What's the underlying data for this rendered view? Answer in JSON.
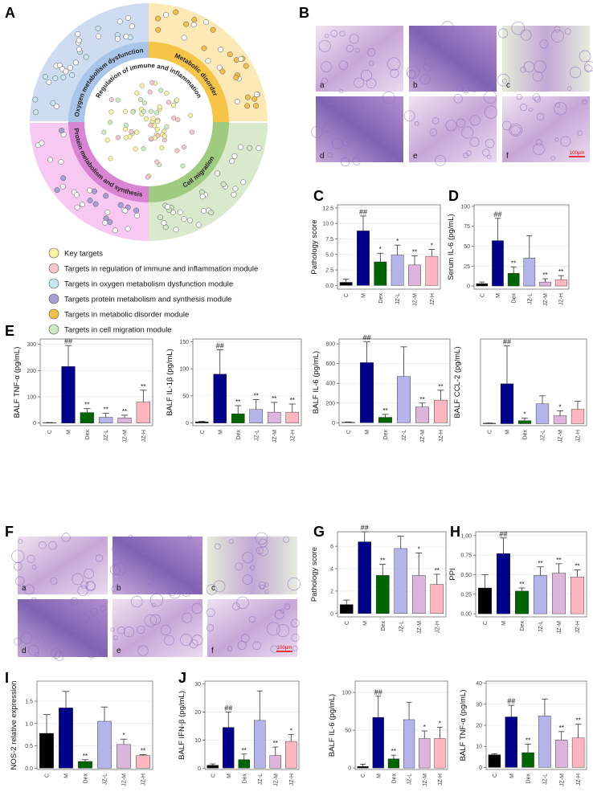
{
  "panel_labels": [
    "A",
    "B",
    "C",
    "D",
    "E",
    "F",
    "G",
    "H",
    "I",
    "J"
  ],
  "network": {
    "modules": [
      "Oxygen metabolism dysfunction",
      "Metabolic disorder",
      "Protein metabolism and synthesis",
      "Cell migration",
      "Regulation of immune and inflammation"
    ],
    "legend": [
      {
        "label": "Key targets",
        "color": "#f6f4a0"
      },
      {
        "label": "Targets in regulation of immune and inflammation module",
        "color": "#f6c6cc"
      },
      {
        "label": "Targets in oxygen metabolism dysfunction module",
        "color": "#c6e6f2"
      },
      {
        "label": "Targets protein metabolism and synthesis module",
        "color": "#a99fd6"
      },
      {
        "label": "Targets in metabolic disorder module",
        "color": "#f3c04a"
      },
      {
        "label": "Targets in cell migration module",
        "color": "#cdeac0"
      }
    ]
  },
  "histology_B": {
    "labels": [
      "a",
      "b",
      "c",
      "d",
      "e",
      "f"
    ],
    "scale_bar": "100μm"
  },
  "histology_F": {
    "labels": [
      "a",
      "b",
      "c",
      "d",
      "e",
      "f"
    ],
    "scale_bar": "100μm"
  },
  "chart_data": [
    {
      "type": "bar",
      "ylabel": "Pathology score",
      "categories": [
        "C",
        "M",
        "Dex",
        "JZ-L",
        "JZ-M",
        "JZ-H"
      ],
      "values": [
        0.5,
        8.8,
        3.8,
        4.9,
        3.3,
        4.7
      ],
      "errors": [
        0.5,
        2.4,
        1.4,
        1.6,
        1.5,
        1.1
      ],
      "annotations": [
        null,
        "##",
        "*",
        "*",
        "**",
        "*"
      ],
      "colors": [
        "#000000",
        "#00008b",
        "#006400",
        "#b4b4ea",
        "#dcb4dc",
        "#ffb6c1"
      ],
      "ylim": [
        -0.6,
        13
      ],
      "yticks": [
        {
          "value": 0,
          "label": "0.0"
        },
        2.5,
        {
          "value": 5,
          "label": "5.0"
        },
        7.5,
        {
          "value": 10,
          "label": "10.0"
        },
        12.5
      ],
      "grid": true
    },
    {
      "type": "bar",
      "ylabel": "Serum IL-6 (pg/mL)",
      "categories": [
        "C",
        "M",
        "Dex",
        "JZ-L",
        "JZ-M",
        "JZ-H"
      ],
      "values": [
        3,
        57,
        16,
        35,
        5,
        8
      ],
      "errors": [
        2,
        28,
        8,
        28,
        4,
        5
      ],
      "annotations": [
        null,
        "##",
        "**",
        null,
        "**",
        "**"
      ],
      "colors": [
        "#000000",
        "#00008b",
        "#006400",
        "#b4b4ea",
        "#dcb4dc",
        "#ffb6c1"
      ],
      "ylim": [
        -4,
        102
      ],
      "yticks": [
        0,
        25,
        50,
        75,
        100
      ],
      "grid": true
    },
    {
      "type": "bar",
      "ylabel": "BALF TNF-α (pg/mL)",
      "categories": [
        "C",
        "M",
        "Dex",
        "JZ-L",
        "JZ-M",
        "JZ-H"
      ],
      "values": [
        1,
        215,
        40,
        22,
        20,
        80
      ],
      "errors": [
        1,
        80,
        15,
        15,
        10,
        45
      ],
      "annotations": [
        null,
        "##",
        "**",
        "**",
        "**",
        "**"
      ],
      "colors": [
        "#000000",
        "#00008b",
        "#006400",
        "#b4b4ea",
        "#dcb4dc",
        "#ffb6c1"
      ],
      "ylim": [
        -10,
        320
      ],
      "yticks": [
        0,
        100,
        200,
        300
      ],
      "grid": true
    },
    {
      "type": "bar",
      "ylabel": "BALF IL-1β (pg/mL)",
      "categories": [
        "C",
        "M",
        "Dex",
        "JZ-L",
        "JZ-M",
        "JZ-H"
      ],
      "values": [
        2,
        90,
        17,
        25,
        20,
        20
      ],
      "errors": [
        1,
        45,
        15,
        18,
        18,
        15
      ],
      "annotations": [
        null,
        "##",
        "**",
        "**",
        "**",
        "**"
      ],
      "colors": [
        "#000000",
        "#00008b",
        "#006400",
        "#b4b4ea",
        "#dcb4dc",
        "#ffb6c1"
      ],
      "ylim": [
        -5,
        155
      ],
      "yticks": [
        0,
        50,
        100,
        150
      ],
      "grid": true
    },
    {
      "type": "bar",
      "ylabel": "BALF IL-6 (pg/mL)",
      "categories": [
        "C",
        "M",
        "Dex",
        "JZ-L",
        "JZ-M",
        "JZ-H"
      ],
      "values": [
        5,
        610,
        55,
        470,
        160,
        230
      ],
      "errors": [
        3,
        210,
        30,
        300,
        40,
        100
      ],
      "annotations": [
        null,
        "##",
        "**",
        null,
        "**",
        "**"
      ],
      "colors": [
        "#000000",
        "#00008b",
        "#006400",
        "#b4b4ea",
        "#dcb4dc",
        "#ffb6c1"
      ],
      "ylim": [
        -30,
        850
      ],
      "yticks": [
        0,
        200,
        400,
        600,
        800
      ],
      "grid": true
    },
    {
      "type": "bar",
      "ylabel": "BALF CCL-2 (pg/mL)",
      "categories": [
        "C",
        "M",
        "Dex",
        "JZ-L",
        "JZ-M",
        "JZ-H"
      ],
      "values": [
        5,
        400,
        30,
        200,
        80,
        145
      ],
      "errors": [
        2,
        380,
        25,
        80,
        50,
        80
      ],
      "annotations": [
        null,
        "##",
        "*",
        null,
        "*",
        null
      ],
      "colors": [
        "#000000",
        "#00008b",
        "#006400",
        "#b4b4ea",
        "#dcb4dc",
        "#ffb6c1"
      ],
      "ylim": [
        -20,
        850
      ],
      "grid": true
    },
    {
      "type": "bar",
      "ylabel": "Pathology score",
      "categories": [
        "C",
        "M",
        "Dex",
        "JZ-L",
        "JZ-M",
        "JZ-H"
      ],
      "values": [
        0.8,
        6.4,
        3.4,
        5.8,
        3.4,
        2.6
      ],
      "errors": [
        0.4,
        0.9,
        1.0,
        1.1,
        2.0,
        0.9
      ],
      "annotations": [
        null,
        "##",
        "**",
        null,
        "*",
        "**"
      ],
      "colors": [
        "#000000",
        "#00008b",
        "#006400",
        "#b4b4ea",
        "#dcb4dc",
        "#ffb6c1"
      ],
      "ylim": [
        -0.3,
        7.3
      ],
      "yticks": [
        0,
        2,
        4,
        6
      ],
      "grid": true
    },
    {
      "type": "bar",
      "ylabel": "PPI",
      "categories": [
        "C",
        "M",
        "Dex",
        "JZ-L",
        "JZ-M",
        "JZ-H"
      ],
      "values": [
        0.33,
        0.77,
        0.29,
        0.49,
        0.52,
        0.47
      ],
      "errors": [
        0.17,
        0.2,
        0.04,
        0.11,
        0.12,
        0.09
      ],
      "annotations": [
        null,
        "##",
        "**",
        "**",
        "**",
        "**"
      ],
      "colors": [
        "#000000",
        "#00008b",
        "#006400",
        "#b4b4ea",
        "#dcb4dc",
        "#ffb6c1"
      ],
      "ylim": [
        -0.04,
        1.05
      ],
      "yticks": [
        {
          "value": 0,
          "label": "0.00"
        },
        0.25,
        {
          "value": 0.5,
          "label": "0.50"
        },
        0.75,
        {
          "value": 1,
          "label": "1.00"
        }
      ],
      "grid": true
    },
    {
      "type": "bar",
      "ylabel": "NOS-2 relative expression",
      "categories": [
        "C",
        "M",
        "Dex",
        "JZ-L",
        "JZ-M",
        "JZ-H"
      ],
      "values": [
        0.78,
        1.35,
        0.15,
        1.05,
        0.53,
        0.28
      ],
      "errors": [
        0.42,
        0.37,
        0.04,
        0.32,
        0.12,
        0.02
      ],
      "annotations": [
        null,
        null,
        "**",
        null,
        "*",
        "**"
      ],
      "colors": [
        "#000000",
        "#00008b",
        "#006400",
        "#b4b4ea",
        "#dcb4dc",
        "#ffb6c1"
      ],
      "ylim": [
        -0.03,
        1.95
      ],
      "yticks": [
        {
          "value": 0,
          "label": "0.0"
        },
        0.5,
        {
          "value": 1,
          "label": "1.0"
        },
        1.5
      ],
      "grid": true
    },
    {
      "type": "bar",
      "ylabel": "BALF IFN-β (pg/mL)",
      "categories": [
        "C",
        "M",
        "Dex",
        "JZ-L",
        "JZ-M",
        "JZ-H"
      ],
      "values": [
        1,
        14.5,
        3,
        17,
        4.5,
        9.5
      ],
      "errors": [
        0.5,
        5.5,
        2,
        10.5,
        3,
        2.5
      ],
      "annotations": [
        null,
        "##",
        "**",
        null,
        "**",
        "*"
      ],
      "colors": [
        "#000000",
        "#00008b",
        "#006400",
        "#b4b4ea",
        "#dcb4dc",
        "#ffb6c1"
      ],
      "ylim": [
        -0.5,
        31
      ],
      "yticks": [
        0,
        10,
        20,
        30
      ],
      "grid": true
    },
    {
      "type": "bar",
      "ylabel": "BALF IL-6 (pg/mL)",
      "categories": [
        "C",
        "M",
        "Dex",
        "JZ-L",
        "JZ-M",
        "JZ-H"
      ],
      "values": [
        2,
        67,
        12,
        64,
        39,
        39
      ],
      "errors": [
        3,
        28,
        5,
        23,
        10,
        15
      ],
      "annotations": [
        null,
        "##",
        "**",
        null,
        "*",
        "*"
      ],
      "colors": [
        "#000000",
        "#00008b",
        "#006400",
        "#b4b4ea",
        "#dcb4dc",
        "#ffb6c1"
      ],
      "ylim": [
        -2,
        115
      ],
      "yticks": [
        0,
        50,
        100
      ],
      "grid": true
    },
    {
      "type": "bar",
      "ylabel": "BALF TNF-α (pg/mL)",
      "categories": [
        "C",
        "M",
        "Dex",
        "JZ-L",
        "JZ-M",
        "JZ-H"
      ],
      "values": [
        6,
        24,
        7,
        24.5,
        13,
        14
      ],
      "errors": [
        0.5,
        5.5,
        4,
        8,
        4,
        6.5
      ],
      "annotations": [
        null,
        "##",
        "**",
        null,
        "**",
        "**"
      ],
      "colors": [
        "#000000",
        "#00008b",
        "#006400",
        "#b4b4ea",
        "#dcb4dc",
        "#ffb6c1"
      ],
      "ylim": [
        -1,
        41
      ],
      "yticks": [
        0,
        10,
        20,
        30,
        40
      ],
      "grid": true
    }
  ]
}
